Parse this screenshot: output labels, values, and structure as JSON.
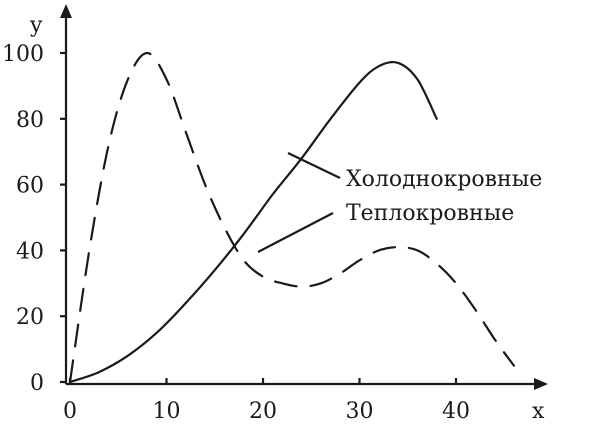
{
  "chart_data": {
    "type": "line",
    "title": "",
    "xlabel": "x",
    "ylabel": "y",
    "xlim": [
      0,
      48
    ],
    "ylim": [
      0,
      110
    ],
    "xticks": [
      0,
      10,
      20,
      30,
      40
    ],
    "yticks": [
      0,
      20,
      40,
      60,
      80,
      100
    ],
    "grid": false,
    "legend": "inline-annotations",
    "series": [
      {
        "name": "Холоднокровные",
        "style": "solid",
        "color": "#1a1a1a",
        "x": [
          0,
          3,
          6,
          9,
          12,
          15,
          18,
          21,
          24,
          27,
          30,
          32,
          34,
          36,
          38
        ],
        "y": [
          0,
          3,
          8,
          15,
          24,
          34,
          45,
          57,
          68,
          80,
          91,
          96,
          97,
          92,
          80
        ]
      },
      {
        "name": "Теплокровные",
        "style": "dashed",
        "color": "#1a1a1a",
        "x": [
          0,
          2,
          4,
          6,
          8,
          10,
          12,
          14,
          16,
          18,
          20,
          22,
          24,
          26,
          28,
          30,
          32,
          34,
          36,
          38,
          40,
          42,
          44,
          46
        ],
        "y": [
          0,
          40,
          72,
          92,
          100,
          92,
          76,
          60,
          47,
          37,
          32,
          30,
          29,
          30,
          33,
          37,
          40,
          41,
          40,
          36,
          30,
          22,
          13,
          5
        ]
      }
    ]
  }
}
